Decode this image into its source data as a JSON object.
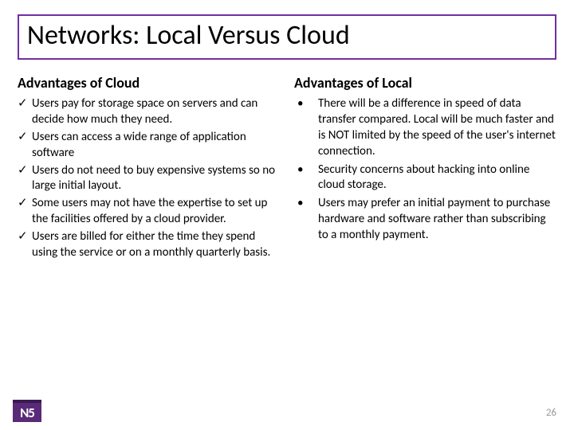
{
  "slide": {
    "title": "Networks: Local Versus Cloud",
    "page_number": "26",
    "logo_text": "N5",
    "columns": {
      "left": {
        "heading": "Advantages of Cloud",
        "items": [
          "Users pay for storage space on servers and can decide how much they need.",
          "Users can access a wide range of application software",
          "Users do not need to buy expensive systems so no large initial layout.",
          "Some users may not have the expertise to set up the facilities offered by a cloud provider.",
          "Users are billed for either the time they spend using the service or on a monthly quarterly basis."
        ]
      },
      "right": {
        "heading": "Advantages of Local",
        "items": [
          "There will be a difference in speed of data transfer compared. Local will be much faster and is NOT limited by the speed of the user's internet connection.",
          "Security concerns about hacking into online cloud storage.",
          "Users may prefer an initial payment to purchase hardware and software rather than subscribing to a monthly payment."
        ]
      }
    }
  },
  "style": {
    "title_border_color": "#7030a0",
    "title_fontsize": 34,
    "heading_fontsize": 18,
    "body_fontsize": 15,
    "background_color": "#ffffff",
    "text_color": "#000000",
    "page_number_color": "#9a9a9a",
    "logo_bg": "#5a2a78",
    "logo_border_top": "#3a1a52",
    "logo_fg": "#ffffff"
  }
}
